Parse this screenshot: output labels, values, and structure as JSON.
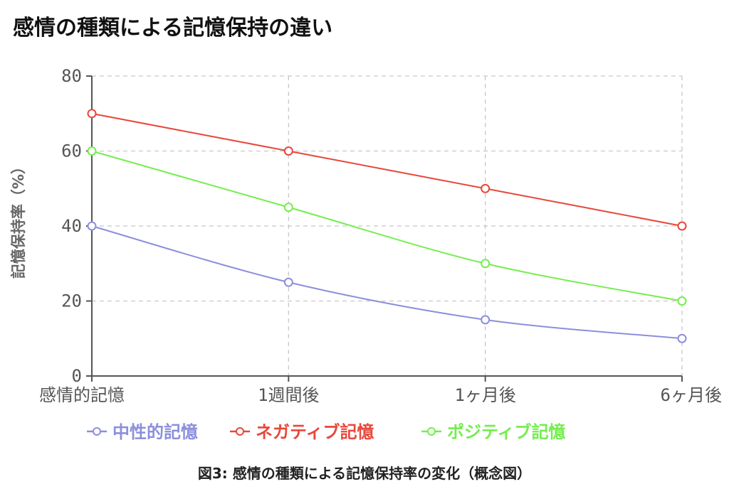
{
  "title": "感情の種類による記憶保持の違い",
  "caption": "図3: 感情の種類による記憶保持率の変化（概念図）",
  "chart_data": {
    "type": "line",
    "title": "感情の種類による記憶保持の違い",
    "xlabel": "",
    "ylabel": "記憶保持率（%）",
    "categories": [
      "感情的記憶",
      "1週間後",
      "1ヶ月後",
      "6ヶ月後"
    ],
    "ylim": [
      0,
      80
    ],
    "yticks": [
      0,
      20,
      40,
      60,
      80
    ],
    "grid": true,
    "legend_position": "bottom",
    "series": [
      {
        "name": "中性的記憶",
        "color": "#8b8fdc",
        "values": [
          40,
          25,
          15,
          10
        ]
      },
      {
        "name": "ネガティブ記憶",
        "color": "#e8473b",
        "values": [
          70,
          60,
          50,
          40
        ]
      },
      {
        "name": "ポジティブ記憶",
        "color": "#73ee4d",
        "values": [
          60,
          45,
          30,
          20
        ]
      }
    ]
  }
}
